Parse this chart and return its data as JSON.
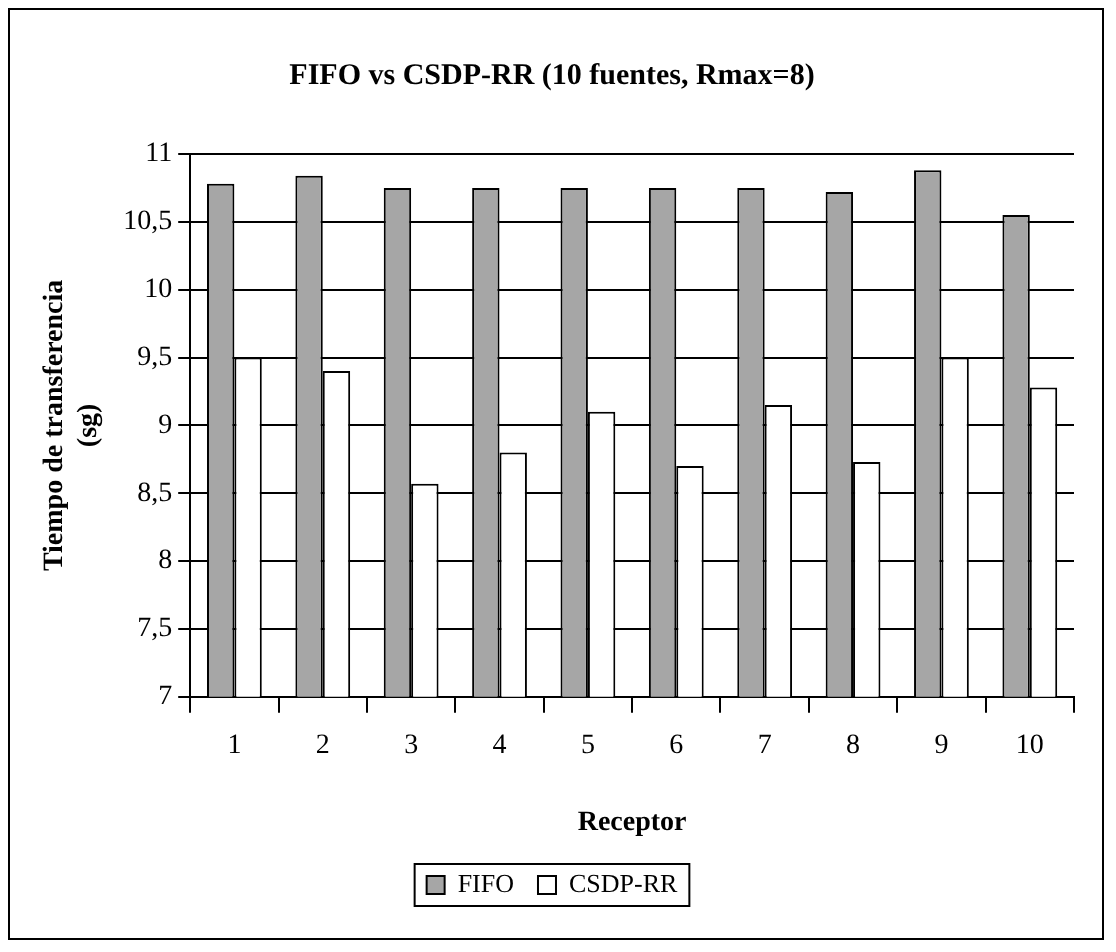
{
  "chart_data": {
    "type": "bar",
    "title": "FIFO vs CSDP-RR (10 fuentes, Rmax=8)",
    "xlabel": "Receptor",
    "ylabel": "Tiempo de transferencia (sg)",
    "categories": [
      "1",
      "2",
      "3",
      "4",
      "5",
      "6",
      "7",
      "8",
      "9",
      "10"
    ],
    "series": [
      {
        "name": "FIFO",
        "color": "#a6a6a6",
        "values": [
          10.78,
          10.84,
          10.75,
          10.75,
          10.75,
          10.75,
          10.75,
          10.72,
          10.88,
          10.55
        ]
      },
      {
        "name": "CSDP-RR",
        "color": "#ffffff",
        "values": [
          9.5,
          9.4,
          8.57,
          8.8,
          9.1,
          8.7,
          9.15,
          8.73,
          9.5,
          9.28
        ]
      }
    ],
    "ylim": [
      7,
      11
    ],
    "yticks": [
      7,
      {
        "value": 7.5,
        "label": "7,5"
      },
      8,
      {
        "value": 8.5,
        "label": "8,5"
      },
      9,
      {
        "value": 9.5,
        "label": "9,5"
      },
      10,
      {
        "value": 10.5,
        "label": "10,5"
      },
      11
    ],
    "grid": "y",
    "legend": "bottom"
  }
}
